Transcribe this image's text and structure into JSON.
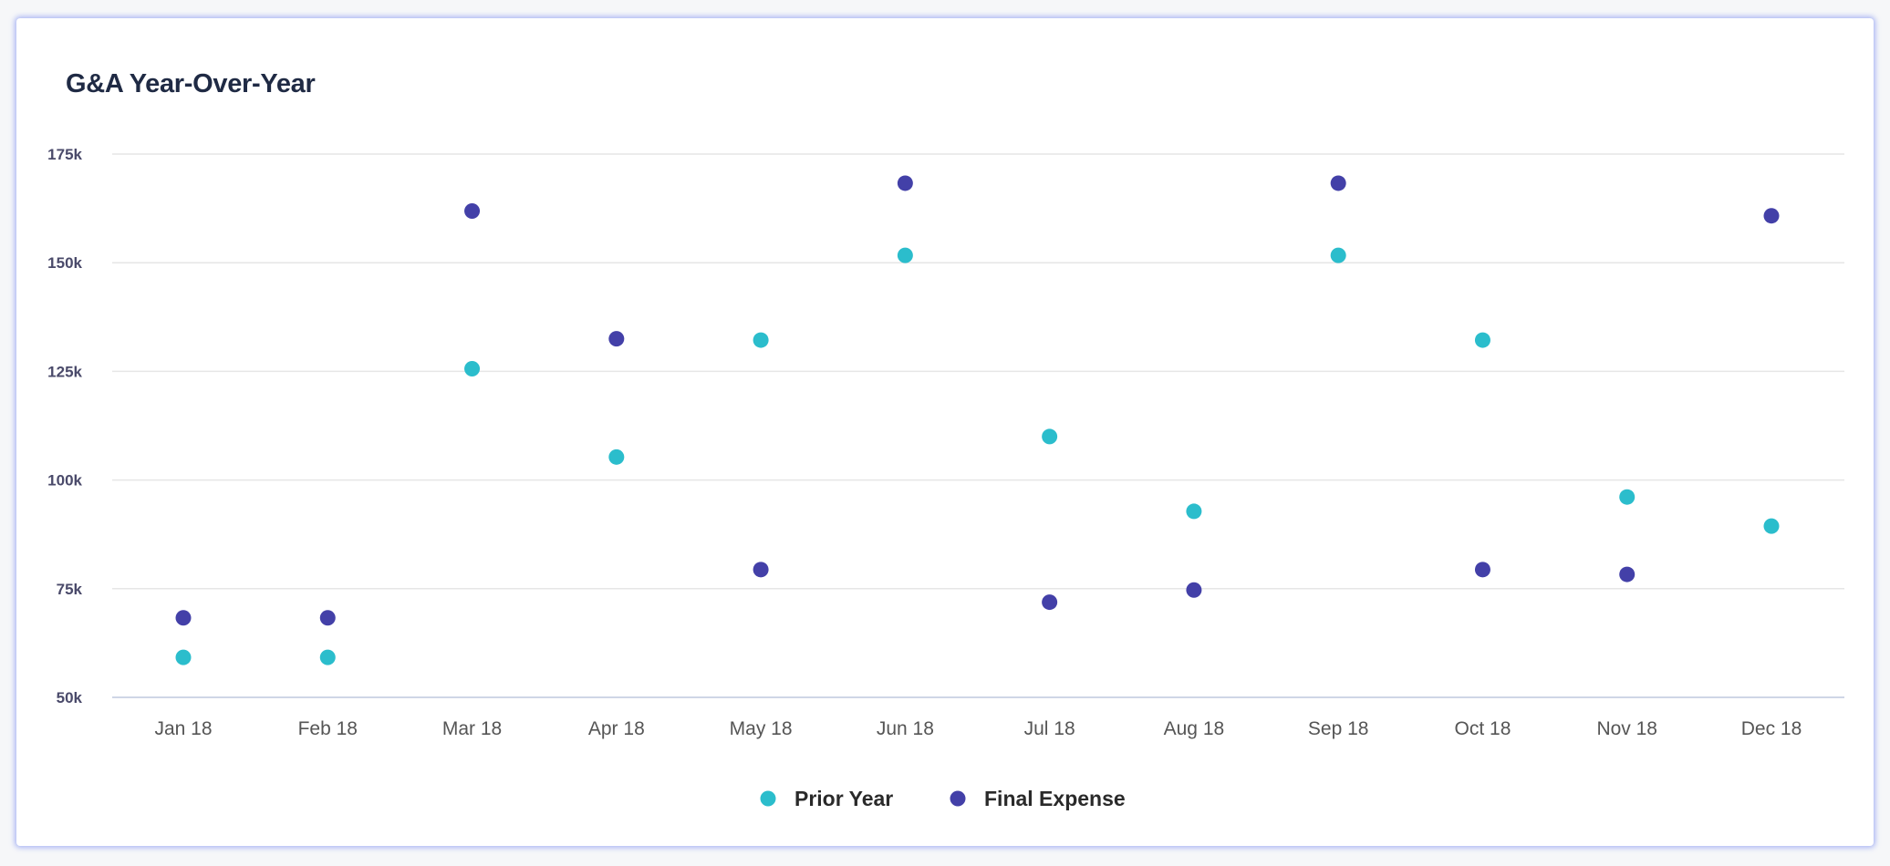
{
  "chart_data": {
    "type": "scatter",
    "title": "G&A Year-Over-Year",
    "xlabel": "",
    "ylabel": "",
    "categories": [
      "Jan 18",
      "Feb 18",
      "Mar 18",
      "Apr 18",
      "May 18",
      "Jun 18",
      "Jul 18",
      "Aug 18",
      "Sep 18",
      "Oct 18",
      "Nov 18",
      "Dec 18"
    ],
    "ylim": [
      50000,
      175000
    ],
    "yticks": [
      50000,
      75000,
      100000,
      125000,
      150000,
      175000
    ],
    "ytick_labels": [
      "50k",
      "75k",
      "100k",
      "125k",
      "150k",
      "175k"
    ],
    "grid": true,
    "legend_position": "bottom-center",
    "series": [
      {
        "name": "Prior Year",
        "color": "#2bbdcc",
        "values": [
          59200,
          59200,
          125600,
          105300,
          132200,
          151700,
          110000,
          92800,
          151700,
          132200,
          96100,
          89400
        ]
      },
      {
        "name": "Final Expense",
        "color": "#4340a8",
        "values": [
          68300,
          68300,
          161900,
          132500,
          79400,
          168300,
          71900,
          74700,
          168300,
          79400,
          78300,
          160800
        ]
      }
    ]
  }
}
